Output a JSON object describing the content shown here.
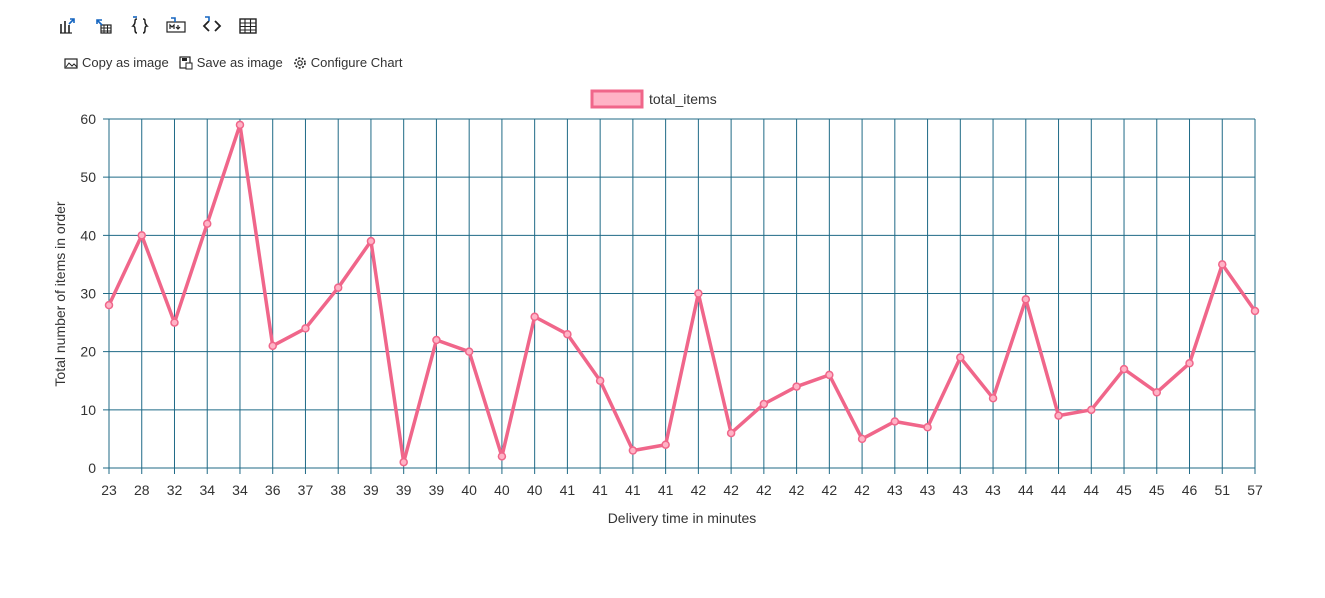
{
  "toolbar": {
    "icons": [
      "bar-chart-export-icon",
      "table-export-icon",
      "json-braces-icon",
      "markdown-icon",
      "code-brackets-icon",
      "grid-table-icon"
    ]
  },
  "actions": {
    "copy_label": "Copy as image",
    "save_label": "Save as image",
    "configure_label": "Configure Chart"
  },
  "colors": {
    "series": "#f0668a",
    "series_fill": "#ffb3c6",
    "grid": "#1f6a86"
  },
  "chart_data": {
    "type": "line",
    "xlabel": "Delivery time in minutes",
    "ylabel": "Total number of items in order",
    "ylim": [
      0,
      60
    ],
    "yticks": [
      0,
      10,
      20,
      30,
      40,
      50,
      60
    ],
    "grid": true,
    "legend_position": "top-center",
    "categories": [
      "23",
      "28",
      "32",
      "34",
      "34",
      "36",
      "37",
      "38",
      "39",
      "39",
      "39",
      "40",
      "40",
      "40",
      "41",
      "41",
      "41",
      "41",
      "42",
      "42",
      "42",
      "42",
      "42",
      "42",
      "43",
      "43",
      "43",
      "43",
      "44",
      "44",
      "44",
      "45",
      "45",
      "46",
      "51",
      "57"
    ],
    "series": [
      {
        "name": "total_items",
        "values": [
          28,
          40,
          25,
          42,
          59,
          21,
          24,
          31,
          39,
          1,
          22,
          20,
          2,
          26,
          23,
          15,
          3,
          4,
          30,
          6,
          11,
          14,
          16,
          5,
          8,
          7,
          19,
          12,
          29,
          9,
          10,
          17,
          13,
          18,
          35,
          27
        ]
      }
    ]
  }
}
